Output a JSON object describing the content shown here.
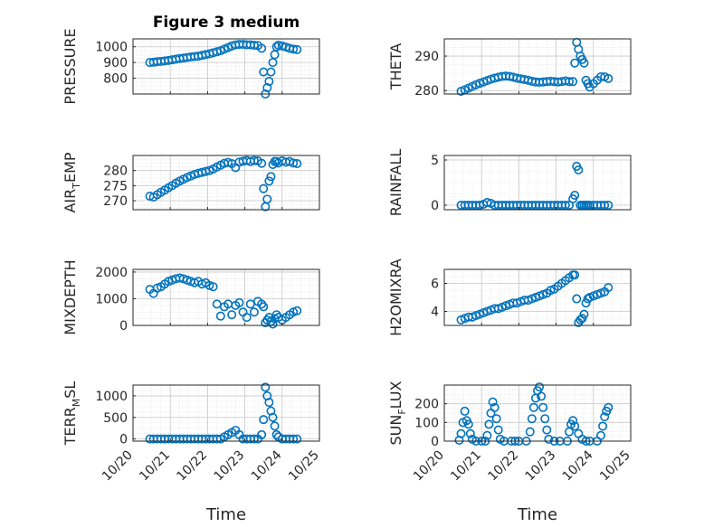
{
  "figure": {
    "title": "Figure 3 medium",
    "x_tick_labels": [
      "10/20",
      "10/21",
      "10/22",
      "10/23",
      "10/24",
      "10/25"
    ],
    "xlabel": "Time",
    "marker_color": "#0072BD",
    "grid_color": "#d9d9d9"
  },
  "chart_data": [
    {
      "type": "scatter",
      "id": "pressure",
      "ylabel": "PRESSURE",
      "ylabel_sub": "",
      "xlim": [
        20,
        25
      ],
      "ylim": [
        700,
        1050
      ],
      "yticks": [
        800,
        900,
        1000
      ],
      "x": [
        20.45,
        20.55,
        20.65,
        20.75,
        20.85,
        20.95,
        21.05,
        21.15,
        21.25,
        21.35,
        21.45,
        21.55,
        21.65,
        21.75,
        21.85,
        21.95,
        22.05,
        22.15,
        22.25,
        22.35,
        22.45,
        22.55,
        22.65,
        22.75,
        22.85,
        22.95,
        23.05,
        23.15,
        23.25,
        23.35,
        23.45,
        23.5,
        23.55,
        23.6,
        23.65,
        23.7,
        23.75,
        23.8,
        23.85,
        23.9,
        24.0,
        24.1,
        24.2,
        24.3,
        24.4
      ],
      "y": [
        900,
        902,
        905,
        907,
        910,
        913,
        917,
        921,
        925,
        928,
        932,
        935,
        938,
        940,
        945,
        950,
        955,
        962,
        968,
        975,
        985,
        995,
        1005,
        1012,
        1015,
        1015,
        1013,
        1012,
        1010,
        1008,
        990,
        840,
        700,
        740,
        780,
        840,
        900,
        950,
        1000,
        1010,
        1005,
        998,
        990,
        985,
        982
      ]
    },
    {
      "type": "scatter",
      "id": "theta",
      "ylabel": "THETA",
      "ylabel_sub": "",
      "xlim": [
        20,
        25
      ],
      "ylim": [
        279,
        295
      ],
      "yticks": [
        280,
        290
      ],
      "x": [
        20.45,
        20.55,
        20.65,
        20.75,
        20.85,
        20.95,
        21.05,
        21.15,
        21.25,
        21.35,
        21.45,
        21.55,
        21.65,
        21.75,
        21.85,
        21.95,
        22.05,
        22.15,
        22.25,
        22.35,
        22.45,
        22.55,
        22.65,
        22.75,
        22.85,
        22.95,
        23.05,
        23.15,
        23.25,
        23.35,
        23.45,
        23.5,
        23.55,
        23.6,
        23.65,
        23.7,
        23.75,
        23.8,
        23.85,
        23.9,
        24.0,
        24.1,
        24.2,
        24.3,
        24.4
      ],
      "y": [
        279.8,
        280.2,
        280.7,
        281.2,
        281.7,
        282.1,
        282.5,
        282.9,
        283.3,
        283.6,
        283.9,
        284.1,
        284.2,
        284.1,
        283.9,
        283.6,
        283.4,
        283.2,
        283.0,
        282.7,
        282.5,
        282.4,
        282.5,
        282.6,
        282.7,
        282.6,
        282.5,
        282.6,
        282.8,
        282.6,
        282.6,
        288,
        294,
        292,
        290,
        289,
        288,
        283,
        282,
        281,
        282,
        283,
        284,
        284,
        283.5
      ]
    },
    {
      "type": "scatter",
      "id": "air_temp",
      "ylabel": "AIR",
      "ylabel_sub": "T",
      "ylabel_suffix": "EMP",
      "xlim": [
        20,
        25
      ],
      "ylim": [
        267,
        285
      ],
      "yticks": [
        270,
        275,
        280
      ],
      "x": [
        20.45,
        20.55,
        20.65,
        20.75,
        20.85,
        20.95,
        21.05,
        21.15,
        21.25,
        21.35,
        21.45,
        21.55,
        21.65,
        21.75,
        21.85,
        21.95,
        22.05,
        22.15,
        22.25,
        22.35,
        22.45,
        22.55,
        22.65,
        22.75,
        22.85,
        22.95,
        23.05,
        23.15,
        23.25,
        23.35,
        23.45,
        23.5,
        23.55,
        23.6,
        23.65,
        23.7,
        23.75,
        23.8,
        23.85,
        23.9,
        24.0,
        24.1,
        24.2,
        24.3,
        24.4
      ],
      "y": [
        271.5,
        271.2,
        272.0,
        272.8,
        273.5,
        274.3,
        275.0,
        275.8,
        276.5,
        277.1,
        277.7,
        278.2,
        278.7,
        279.1,
        279.4,
        279.7,
        280.0,
        280.5,
        281.2,
        281.8,
        282.4,
        282.7,
        282.3,
        281.0,
        282.8,
        283.1,
        283.3,
        283.0,
        283.3,
        283.2,
        282.4,
        274.0,
        268.0,
        270.5,
        276.5,
        278.0,
        282.0,
        283.0,
        283.0,
        282.5,
        283.2,
        282.8,
        283.0,
        282.5,
        282.3
      ]
    },
    {
      "type": "scatter",
      "id": "rainfall",
      "ylabel": "RAINFALL",
      "ylabel_sub": "",
      "xlim": [
        20,
        25
      ],
      "ylim": [
        -0.5,
        5.5
      ],
      "yticks": [
        0,
        5
      ],
      "x": [
        20.45,
        20.55,
        20.65,
        20.75,
        20.85,
        20.95,
        21.05,
        21.15,
        21.25,
        21.35,
        21.45,
        21.55,
        21.65,
        21.75,
        21.85,
        21.95,
        22.05,
        22.15,
        22.25,
        22.35,
        22.45,
        22.55,
        22.65,
        22.75,
        22.85,
        22.95,
        23.05,
        23.15,
        23.25,
        23.35,
        23.45,
        23.5,
        23.55,
        23.6,
        23.65,
        23.7,
        23.75,
        23.8,
        23.85,
        23.9,
        24.0,
        24.1,
        24.2,
        24.3,
        24.4
      ],
      "y": [
        0,
        0,
        0,
        0,
        0,
        0,
        0.1,
        0.3,
        0.2,
        0,
        0,
        0,
        0,
        0,
        0,
        0,
        0,
        0,
        0,
        0,
        0,
        0,
        0,
        0,
        0,
        0,
        0,
        0,
        0,
        0,
        0.7,
        1.1,
        4.3,
        3.9,
        0,
        0,
        0,
        0,
        0,
        0,
        0,
        0,
        0,
        0,
        0
      ]
    },
    {
      "type": "scatter",
      "id": "mixdepth",
      "ylabel": "MIXDEPTH",
      "ylabel_sub": "",
      "xlim": [
        20,
        25
      ],
      "ylim": [
        0,
        2100
      ],
      "yticks": [
        0,
        1000,
        2000
      ],
      "x": [
        20.45,
        20.55,
        20.65,
        20.75,
        20.85,
        20.95,
        21.05,
        21.15,
        21.25,
        21.35,
        21.45,
        21.55,
        21.65,
        21.75,
        21.85,
        21.95,
        22.05,
        22.15,
        22.25,
        22.35,
        22.45,
        22.55,
        22.65,
        22.75,
        22.85,
        22.95,
        23.05,
        23.15,
        23.25,
        23.35,
        23.45,
        23.5,
        23.55,
        23.6,
        23.65,
        23.7,
        23.75,
        23.8,
        23.85,
        23.9,
        24.0,
        24.1,
        24.2,
        24.3,
        24.4
      ],
      "y": [
        1350,
        1200,
        1400,
        1450,
        1550,
        1650,
        1700,
        1750,
        1780,
        1750,
        1700,
        1650,
        1600,
        1650,
        1550,
        1600,
        1500,
        1450,
        800,
        350,
        700,
        800,
        400,
        750,
        850,
        500,
        300,
        800,
        500,
        900,
        800,
        700,
        100,
        200,
        300,
        150,
        50,
        250,
        400,
        300,
        200,
        300,
        400,
        500,
        550
      ]
    },
    {
      "type": "scatter",
      "id": "h2omixra",
      "ylabel": "H2OMIXRA",
      "ylabel_sub": "",
      "xlim": [
        20,
        25
      ],
      "ylim": [
        3,
        7
      ],
      "yticks": [
        4,
        6
      ],
      "x": [
        20.45,
        20.55,
        20.65,
        20.75,
        20.85,
        20.95,
        21.05,
        21.15,
        21.25,
        21.35,
        21.45,
        21.55,
        21.65,
        21.75,
        21.85,
        21.95,
        22.05,
        22.15,
        22.25,
        22.35,
        22.45,
        22.55,
        22.65,
        22.75,
        22.85,
        22.95,
        23.05,
        23.15,
        23.25,
        23.35,
        23.45,
        23.5,
        23.55,
        23.6,
        23.65,
        23.7,
        23.75,
        23.8,
        23.85,
        23.9,
        24.0,
        24.1,
        24.2,
        24.3,
        24.4
      ],
      "y": [
        3.4,
        3.5,
        3.6,
        3.6,
        3.7,
        3.8,
        3.9,
        4.0,
        4.1,
        4.2,
        4.2,
        4.3,
        4.4,
        4.5,
        4.6,
        4.6,
        4.7,
        4.8,
        4.8,
        4.9,
        5.0,
        5.1,
        5.2,
        5.3,
        5.5,
        5.6,
        5.8,
        6.0,
        6.2,
        6.4,
        6.6,
        6.6,
        4.9,
        3.2,
        3.4,
        3.5,
        3.8,
        4.6,
        4.9,
        5.0,
        5.1,
        5.2,
        5.3,
        5.4,
        5.7
      ]
    },
    {
      "type": "scatter",
      "id": "terr_msl",
      "ylabel": "TERR",
      "ylabel_sub": "M",
      "ylabel_suffix": "SL",
      "xlim": [
        20,
        25
      ],
      "ylim": [
        -50,
        1250
      ],
      "yticks": [
        0,
        500,
        1000
      ],
      "x": [
        20.45,
        20.55,
        20.65,
        20.75,
        20.85,
        20.95,
        21.05,
        21.15,
        21.25,
        21.35,
        21.45,
        21.55,
        21.65,
        21.75,
        21.85,
        21.95,
        22.05,
        22.15,
        22.25,
        22.35,
        22.45,
        22.55,
        22.65,
        22.75,
        22.85,
        22.95,
        23.05,
        23.15,
        23.25,
        23.35,
        23.45,
        23.5,
        23.55,
        23.6,
        23.65,
        23.7,
        23.75,
        23.8,
        23.85,
        23.9,
        24.0,
        24.1,
        24.2,
        24.3,
        24.4
      ],
      "y": [
        0,
        0,
        0,
        0,
        0,
        0,
        0,
        0,
        0,
        0,
        0,
        0,
        0,
        0,
        0,
        0,
        0,
        0,
        0,
        0,
        50,
        100,
        150,
        200,
        100,
        0,
        0,
        0,
        0,
        0,
        100,
        450,
        1200,
        1000,
        850,
        650,
        500,
        300,
        100,
        50,
        0,
        0,
        0,
        0,
        0
      ]
    },
    {
      "type": "scatter",
      "id": "sun_flux",
      "ylabel": "SUN",
      "ylabel_sub": "F",
      "ylabel_suffix": "LUX",
      "xlim": [
        20,
        25
      ],
      "ylim": [
        0,
        300
      ],
      "yticks": [
        0,
        100,
        200
      ],
      "x": [
        20.4,
        20.45,
        20.5,
        20.55,
        20.6,
        20.65,
        20.7,
        20.75,
        20.85,
        21.0,
        21.1,
        21.15,
        21.2,
        21.25,
        21.3,
        21.35,
        21.4,
        21.45,
        21.5,
        21.6,
        21.8,
        21.9,
        22.0,
        22.2,
        22.3,
        22.35,
        22.4,
        22.45,
        22.5,
        22.55,
        22.6,
        22.65,
        22.7,
        22.75,
        22.8,
        22.95,
        23.1,
        23.3,
        23.35,
        23.4,
        23.45,
        23.5,
        23.6,
        23.7,
        23.8,
        23.9,
        24.1,
        24.2,
        24.25,
        24.3,
        24.35,
        24.4
      ],
      "y": [
        5,
        40,
        100,
        160,
        110,
        90,
        40,
        10,
        0,
        0,
        0,
        30,
        90,
        150,
        210,
        180,
        120,
        60,
        10,
        0,
        0,
        0,
        0,
        0,
        50,
        120,
        180,
        230,
        270,
        290,
        240,
        180,
        120,
        60,
        10,
        0,
        0,
        0,
        50,
        90,
        110,
        80,
        40,
        10,
        0,
        0,
        0,
        30,
        80,
        130,
        160,
        180
      ]
    }
  ]
}
